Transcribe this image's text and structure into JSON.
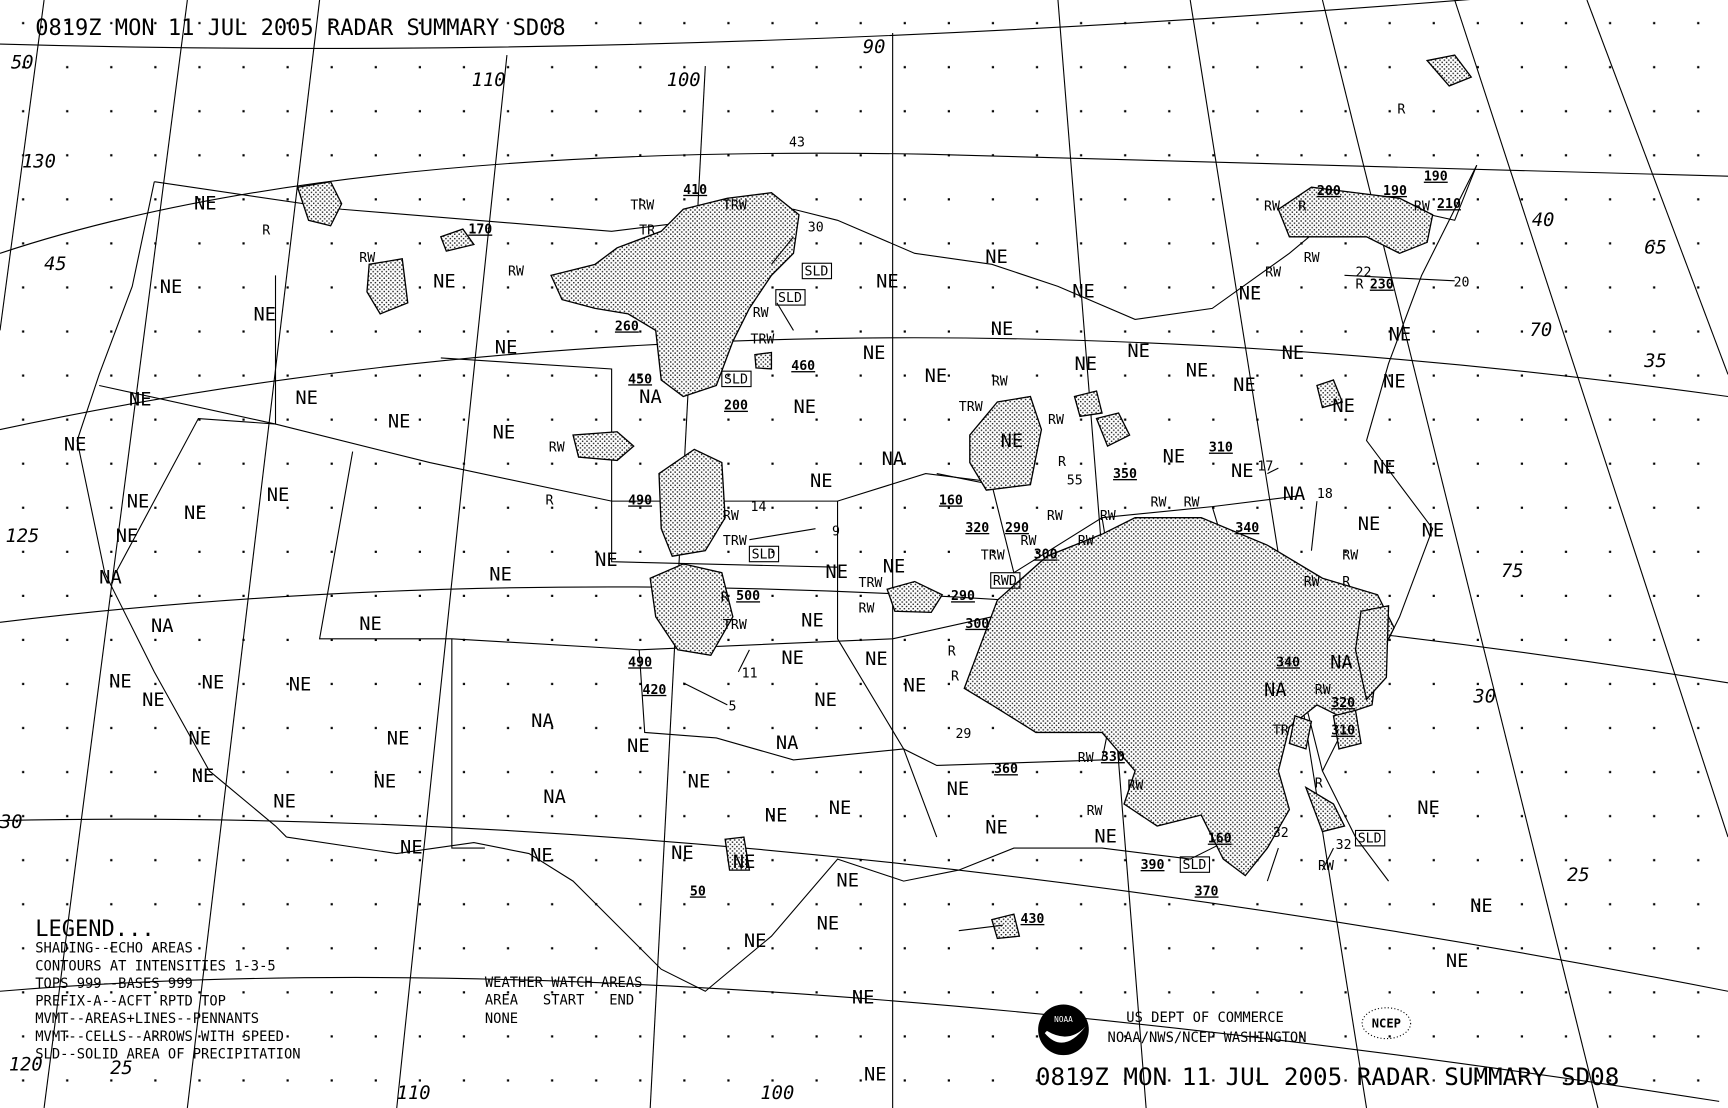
{
  "title_top": "0819Z MON 11 JUL 2005 RADAR SUMMARY SD08",
  "title_bottom": "0819Z MON 11 JUL 2005 RADAR SUMMARY SD08",
  "legend": {
    "heading": "LEGEND...",
    "lines": [
      "SHADING--ECHO AREAS",
      "CONTOURS AT INTENSITIES 1-3-5",
      "TOPS 999--BASES 999",
      "PREFIX-A--ACFT RPTD TOP",
      "MVMT--AREAS+LINES--PENNANTS",
      "MVMT--CELLS--ARROWS WITH SPEED",
      "SLD--SOLID AREA OF PRECIPITATION"
    ]
  },
  "watch": {
    "heading": "WEATHER WATCH AREAS",
    "columns": "AREA   START   END",
    "value": "NONE"
  },
  "agency": {
    "line1": "US DEPT OF COMMERCE",
    "line2": "NOAA/NWS/NCEP WASHINGTON",
    "noaa_logo": "NOAA",
    "ncep_logo": "NCEP"
  },
  "colors": {
    "ink": "#000000",
    "echo_shading": "#9a9a9a",
    "background": "#ffffff"
  },
  "grid_labels": [
    "50",
    "130",
    "45",
    "125",
    "30",
    "120",
    "25",
    "110",
    "100",
    "90",
    "110",
    "100",
    "40",
    "65",
    "70",
    "35",
    "75",
    "30",
    "25"
  ],
  "area_labels": [
    "NE",
    "NE",
    "NE",
    "NE",
    "NE",
    "NE",
    "NE",
    "NE",
    "NE",
    "NE",
    "NE",
    "NE",
    "NE",
    "NE",
    "NA",
    "NE",
    "NE",
    "NE",
    "NE",
    "NE",
    "NE",
    "NE",
    "NE",
    "NE",
    "NE",
    "NE",
    "NE",
    "NE",
    "NE",
    "NE",
    "NE",
    "NE",
    "NE",
    "NE",
    "NE",
    "NE",
    "NE",
    "NE",
    "NE",
    "NE",
    "NE",
    "NE",
    "NE",
    "NE",
    "NE",
    "NE",
    "NE",
    "NE",
    "NE",
    "NE",
    "NE",
    "NE",
    "NE",
    "NE",
    "NE",
    "NE",
    "NE",
    "NE",
    "NE",
    "NE",
    "NE",
    "NE",
    "NE",
    "NE",
    "NE",
    "NE",
    "NE",
    "NE",
    "NE",
    "NE",
    "NE",
    "NE",
    "NE",
    "NE",
    "NE",
    "NE",
    "NA",
    "NA",
    "NA",
    "NA",
    "NA",
    "NA",
    "NA",
    "NA",
    "NA"
  ],
  "tops": [
    "170",
    "410",
    "260",
    "450",
    "200",
    "460",
    "490",
    "500",
    "490",
    "420",
    "50",
    "160",
    "320",
    "290",
    "300",
    "290",
    "300",
    "350",
    "310",
    "340",
    "340",
    "320",
    "310",
    "330",
    "360",
    "390",
    "160",
    "370",
    "430",
    "190",
    "190",
    "210",
    "200",
    "230"
  ],
  "precip_labels": [
    "R",
    "RW",
    "RW",
    "TRW",
    "TR",
    "TRW",
    "RW",
    "TRW",
    "RW",
    "R",
    "RW",
    "TRW",
    "RW",
    "TRW",
    "R",
    "TRW",
    "RW",
    "TRW",
    "RW",
    "R",
    "RW",
    "RW",
    "RW",
    "RW",
    "RW",
    "TRW",
    "RW",
    "R",
    "R",
    "RW",
    "RW",
    "RW",
    "TR",
    "RW",
    "R",
    "RW",
    "RW",
    "R",
    "RW",
    "RW",
    "R",
    "RW",
    "RW",
    "RW",
    "R",
    "R"
  ],
  "sld_boxes": [
    "SLD",
    "SLD",
    "SLD",
    "SLD",
    "SLD",
    "SLD",
    "RWD"
  ],
  "speeds": [
    "43",
    "30",
    "14",
    "9",
    "11",
    "5",
    "55",
    "17",
    "18",
    "22",
    "20",
    "32",
    "32",
    "29"
  ]
}
